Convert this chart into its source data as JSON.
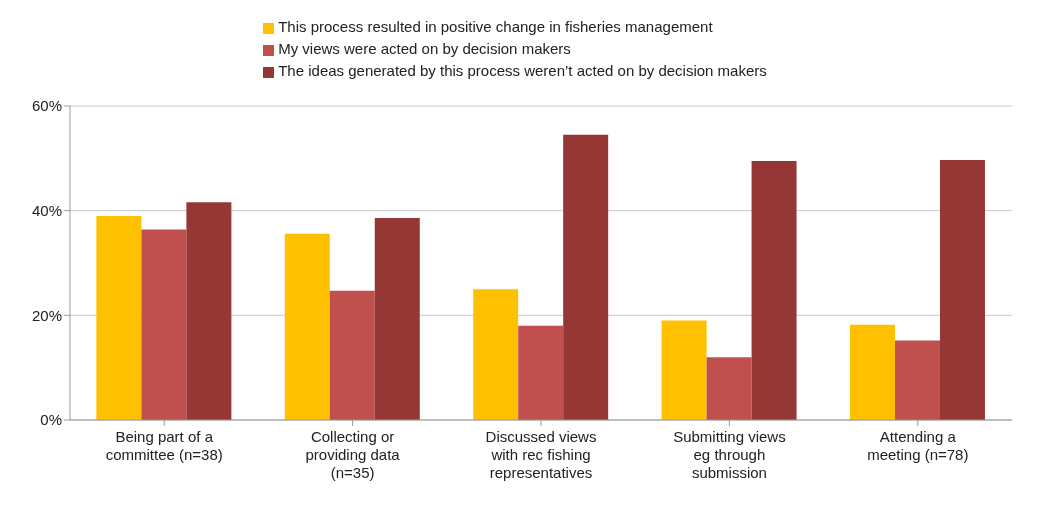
{
  "chart_data": {
    "type": "bar",
    "categories": [
      "Being part of a committee (n=38)",
      "Collecting or providing data (n=35)",
      "Discussed views with rec fishing representatives",
      "Submitting views eg through submission",
      "Attending a meeting (n=78)"
    ],
    "series": [
      {
        "name": "This process resulted in positive change in fisheries management",
        "color": "#ffc000",
        "values": [
          39,
          35.6,
          25,
          19,
          18.2
        ]
      },
      {
        "name": "My views were acted on by decision makers",
        "color": "#c0504d",
        "values": [
          36.4,
          24.7,
          18,
          12,
          15.2
        ]
      },
      {
        "name": "The ideas generated by this process weren’t acted on by decision makers",
        "color": "#953735",
        "values": [
          41.6,
          38.6,
          54.5,
          49.5,
          49.7
        ]
      }
    ],
    "ylim": [
      0,
      60
    ],
    "yticks": [
      {
        "value": 0,
        "label": "0%"
      },
      {
        "value": 20,
        "label": "20%"
      },
      {
        "value": 40,
        "label": "40%"
      },
      {
        "value": 60,
        "label": "60%"
      }
    ],
    "grid": "y",
    "legend": "top"
  }
}
